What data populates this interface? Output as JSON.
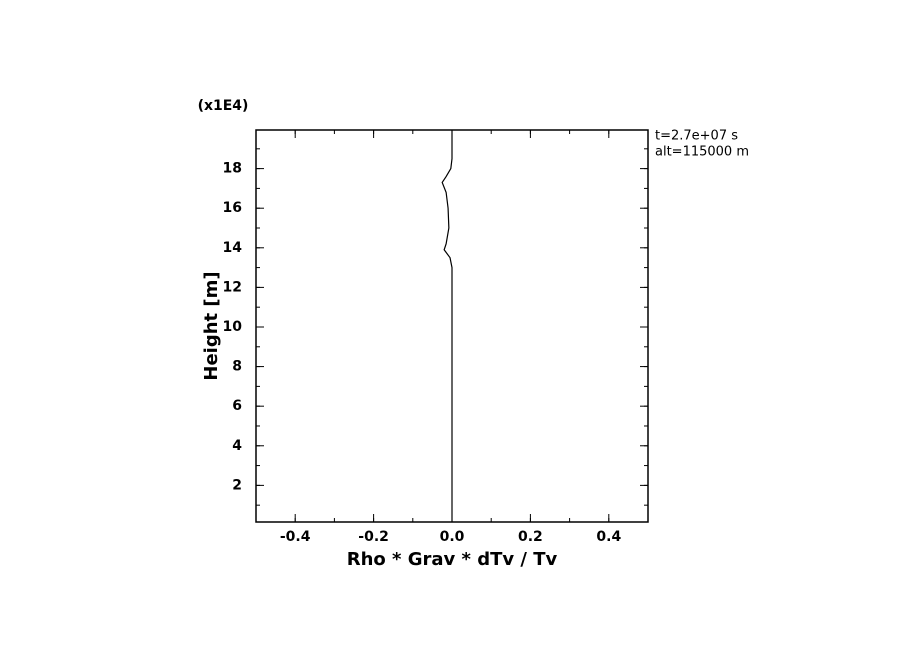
{
  "chart_data": {
    "type": "line",
    "x_label": "Rho * Grav * dTv / Tv",
    "y_label": "Height [m]",
    "y_scale_note": "(x1E4)",
    "annotations": [
      "t=2.7e+07 s",
      "alt=115000 m"
    ],
    "xlim": [
      -0.5,
      0.5
    ],
    "xticks": [
      -0.4,
      -0.2,
      {
        "value": 0,
        "label": "0.0"
      },
      0.2,
      0.4
    ],
    "ylim": [
      0.15,
      19.95
    ],
    "yticks": [
      2,
      4,
      6,
      8,
      10,
      12,
      14,
      16,
      18
    ],
    "series": [
      {
        "color": "#000000",
        "x": [
          0,
          0,
          -0.005,
          -0.02,
          -0.015,
          -0.008,
          -0.01,
          -0.015,
          -0.025,
          -0.015,
          -0.003,
          0,
          0
        ],
        "y": [
          0.15,
          13.0,
          13.5,
          13.9,
          14.2,
          15,
          16,
          16.8,
          17.3,
          17.6,
          18.0,
          18.5,
          19.95
        ]
      }
    ]
  }
}
